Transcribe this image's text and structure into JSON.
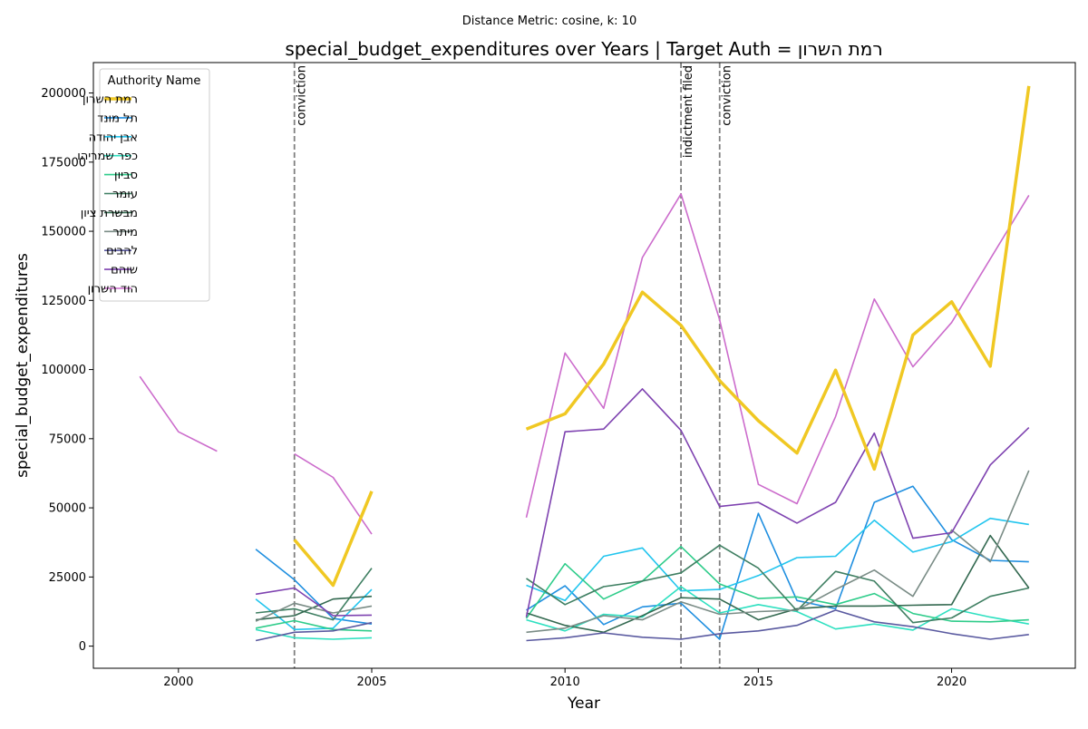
{
  "suptitle": "Distance Metric: cosine, k: 10",
  "chart_data": {
    "type": "line",
    "title": "special_budget_expenditures over Years | Target Auth = רמת השרון",
    "xlabel": "Year",
    "ylabel": "special_budget_expenditures",
    "xlim": [
      1997.8,
      2023.2
    ],
    "ylim": [
      -8000,
      211000
    ],
    "x_ticks": [
      2000,
      2005,
      2010,
      2015,
      2020
    ],
    "y_ticks": [
      0,
      25000,
      50000,
      75000,
      100000,
      125000,
      150000,
      175000,
      200000
    ],
    "grid": false,
    "legend": {
      "title": "Authority Name",
      "placement": "top-left"
    },
    "events": [
      {
        "x": 2003,
        "label": "conviction"
      },
      {
        "x": 2013,
        "label": "indictment filed"
      },
      {
        "x": 2014,
        "label": "conviction"
      }
    ],
    "series": [
      {
        "name": "רמת השרון",
        "color": "#f0c823",
        "target": true,
        "points": [
          [
            2003,
            38500
          ],
          [
            2004,
            22000
          ],
          [
            2005,
            56000
          ],
          [
            2009,
            78500
          ],
          [
            2010,
            84000
          ],
          [
            2011,
            102000
          ],
          [
            2012,
            128000
          ],
          [
            2013,
            116000
          ],
          [
            2014,
            96000
          ],
          [
            2015,
            81500
          ],
          [
            2016,
            69800
          ],
          [
            2017,
            99800
          ],
          [
            2018,
            64000
          ],
          [
            2019,
            112500
          ],
          [
            2020,
            124500
          ],
          [
            2021,
            101200
          ],
          [
            2022,
            202500
          ]
        ]
      },
      {
        "name": "תל מונד",
        "color": "#1f8fe0",
        "points": [
          [
            2002,
            35000
          ],
          [
            2003,
            24000
          ],
          [
            2004,
            10000
          ],
          [
            2005,
            8000
          ],
          [
            2009,
            13000
          ],
          [
            2010,
            21800
          ],
          [
            2011,
            7800
          ],
          [
            2012,
            14200
          ],
          [
            2013,
            15500
          ],
          [
            2014,
            2500
          ],
          [
            2015,
            48000
          ],
          [
            2016,
            16500
          ],
          [
            2017,
            13500
          ],
          [
            2018,
            52000
          ],
          [
            2019,
            57800
          ],
          [
            2020,
            38500
          ],
          [
            2021,
            31000
          ],
          [
            2022,
            30500
          ]
        ]
      },
      {
        "name": "אבן יהודה",
        "color": "#22c5ee",
        "points": [
          [
            2002,
            17000
          ],
          [
            2003,
            6000
          ],
          [
            2004,
            6500
          ],
          [
            2005,
            20500
          ],
          [
            2009,
            22000
          ],
          [
            2010,
            16500
          ],
          [
            2011,
            32500
          ],
          [
            2012,
            35500
          ],
          [
            2013,
            20000
          ],
          [
            2014,
            20500
          ],
          [
            2015,
            25500
          ],
          [
            2016,
            32000
          ],
          [
            2017,
            32500
          ],
          [
            2018,
            45500
          ],
          [
            2019,
            34000
          ],
          [
            2020,
            37800
          ],
          [
            2021,
            46200
          ],
          [
            2022,
            44000
          ]
        ]
      },
      {
        "name": "כפר שמריהו",
        "color": "#2de0c0",
        "points": [
          [
            2002,
            6000
          ],
          [
            2003,
            3000
          ],
          [
            2004,
            2500
          ],
          [
            2005,
            3000
          ],
          [
            2009,
            9500
          ],
          [
            2010,
            5500
          ],
          [
            2011,
            11500
          ],
          [
            2012,
            10500
          ],
          [
            2013,
            21500
          ],
          [
            2014,
            12000
          ],
          [
            2015,
            15000
          ],
          [
            2016,
            12500
          ],
          [
            2017,
            6200
          ],
          [
            2018,
            8000
          ],
          [
            2019,
            5800
          ],
          [
            2020,
            13500
          ],
          [
            2021,
            10500
          ],
          [
            2022,
            8000
          ]
        ]
      },
      {
        "name": "סביון",
        "color": "#2ecc8a",
        "points": [
          [
            2002,
            6500
          ],
          [
            2003,
            9200
          ],
          [
            2004,
            6000
          ],
          [
            2005,
            5500
          ],
          [
            2009,
            10000
          ],
          [
            2010,
            29800
          ],
          [
            2011,
            17000
          ],
          [
            2012,
            23500
          ],
          [
            2013,
            36000
          ],
          [
            2014,
            22500
          ],
          [
            2015,
            17200
          ],
          [
            2016,
            17800
          ],
          [
            2017,
            15000
          ],
          [
            2018,
            19000
          ],
          [
            2019,
            11800
          ],
          [
            2020,
            9000
          ],
          [
            2021,
            8800
          ],
          [
            2022,
            9500
          ]
        ]
      },
      {
        "name": "עומר",
        "color": "#3f7f62",
        "points": [
          [
            2002,
            12000
          ],
          [
            2003,
            13500
          ],
          [
            2004,
            9500
          ],
          [
            2005,
            28200
          ],
          [
            2009,
            24500
          ],
          [
            2010,
            15000
          ],
          [
            2011,
            21500
          ],
          [
            2012,
            23500
          ],
          [
            2013,
            26500
          ],
          [
            2014,
            36500
          ],
          [
            2015,
            28200
          ],
          [
            2016,
            12800
          ],
          [
            2017,
            27000
          ],
          [
            2018,
            23500
          ],
          [
            2019,
            8500
          ],
          [
            2020,
            10200
          ],
          [
            2021,
            18000
          ],
          [
            2022,
            21000
          ]
        ]
      },
      {
        "name": "מבשרת ציון",
        "color": "#32684f",
        "points": [
          [
            2002,
            9500
          ],
          [
            2003,
            11000
          ],
          [
            2004,
            17000
          ],
          [
            2005,
            18000
          ],
          [
            2009,
            12000
          ],
          [
            2010,
            7500
          ],
          [
            2011,
            5000
          ],
          [
            2012,
            11000
          ],
          [
            2013,
            17500
          ],
          [
            2014,
            17000
          ],
          [
            2015,
            9500
          ],
          [
            2016,
            13500
          ],
          [
            2017,
            14500
          ],
          [
            2018,
            14500
          ],
          [
            2019,
            14800
          ],
          [
            2020,
            15000
          ],
          [
            2021,
            40000
          ],
          [
            2022,
            21000
          ]
        ]
      },
      {
        "name": "מיתר",
        "color": "#7a8c86",
        "points": [
          [
            2002,
            9000
          ],
          [
            2003,
            15500
          ],
          [
            2004,
            12000
          ],
          [
            2005,
            14500
          ],
          [
            2009,
            5000
          ],
          [
            2010,
            6500
          ],
          [
            2011,
            11000
          ],
          [
            2012,
            9500
          ],
          [
            2013,
            16000
          ],
          [
            2014,
            11500
          ],
          [
            2015,
            12500
          ],
          [
            2016,
            13000
          ],
          [
            2017,
            20500
          ],
          [
            2018,
            27500
          ],
          [
            2019,
            18000
          ],
          [
            2020,
            42000
          ],
          [
            2021,
            30500
          ],
          [
            2022,
            63500
          ]
        ]
      },
      {
        "name": "להבים",
        "color": "#5a5aa0",
        "points": [
          [
            2002,
            2000
          ],
          [
            2003,
            5000
          ],
          [
            2004,
            5500
          ],
          [
            2005,
            8500
          ],
          [
            2009,
            2000
          ],
          [
            2010,
            3000
          ],
          [
            2011,
            4800
          ],
          [
            2012,
            3200
          ],
          [
            2013,
            2500
          ],
          [
            2014,
            4500
          ],
          [
            2015,
            5500
          ],
          [
            2016,
            7500
          ],
          [
            2017,
            13000
          ],
          [
            2018,
            8800
          ],
          [
            2019,
            7000
          ],
          [
            2020,
            4500
          ],
          [
            2021,
            2500
          ],
          [
            2022,
            4200
          ]
        ]
      },
      {
        "name": "שוהם",
        "color": "#7e42b0",
        "points": [
          [
            2002,
            18800
          ],
          [
            2003,
            21000
          ],
          [
            2004,
            11000
          ],
          [
            2005,
            11200
          ],
          [
            2009,
            10500
          ],
          [
            2010,
            77500
          ],
          [
            2011,
            78500
          ],
          [
            2012,
            93000
          ],
          [
            2013,
            78000
          ],
          [
            2014,
            50500
          ],
          [
            2015,
            52000
          ],
          [
            2016,
            44500
          ],
          [
            2017,
            52000
          ],
          [
            2018,
            77000
          ],
          [
            2019,
            39000
          ],
          [
            2020,
            41000
          ],
          [
            2021,
            65500
          ],
          [
            2022,
            79000
          ]
        ]
      },
      {
        "name": "הוד השרון",
        "color": "#cc6ccc",
        "points": [
          [
            1999,
            97500
          ],
          [
            2000,
            77500
          ],
          [
            2001,
            70500
          ],
          [
            2003,
            69500
          ],
          [
            2004,
            61000
          ],
          [
            2005,
            40500
          ],
          [
            2009,
            46500
          ],
          [
            2010,
            106000
          ],
          [
            2011,
            86000
          ],
          [
            2012,
            140500
          ],
          [
            2013,
            163500
          ],
          [
            2014,
            118000
          ],
          [
            2015,
            58500
          ],
          [
            2016,
            51500
          ],
          [
            2017,
            83000
          ],
          [
            2018,
            125500
          ],
          [
            2019,
            101000
          ],
          [
            2020,
            117000
          ],
          [
            2021,
            140000
          ],
          [
            2022,
            163000
          ]
        ]
      }
    ]
  }
}
